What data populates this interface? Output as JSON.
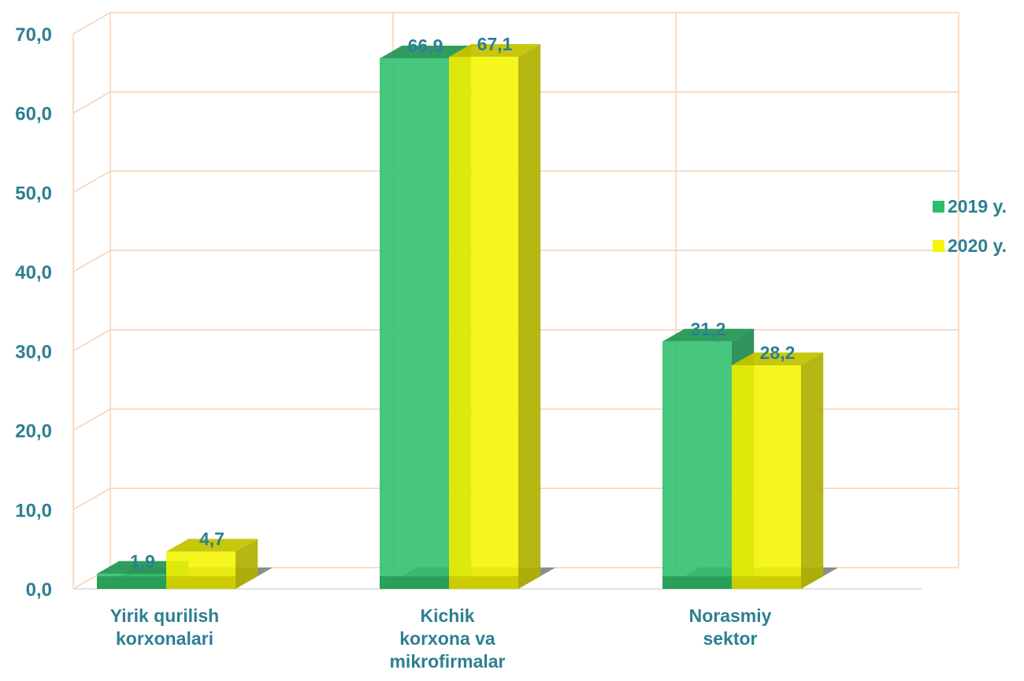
{
  "chart_data": {
    "type": "bar",
    "categories": [
      [
        "Yirik qurilish",
        "korxonalari"
      ],
      [
        "Kichik",
        "korxona va",
        "mikrofirmalar"
      ],
      [
        "Norasmiy",
        "sektor"
      ]
    ],
    "series": [
      {
        "name": "2019 y.",
        "values": [
          1.9,
          66.9,
          31.2
        ],
        "labels": [
          "1,9",
          "66,9",
          "31,2"
        ],
        "color": "#2EBE6B"
      },
      {
        "name": "2020 y.",
        "values": [
          4.7,
          67.1,
          28.2
        ],
        "labels": [
          "4,7",
          "67,1",
          "28,2"
        ],
        "color": "#F5F500"
      }
    ],
    "ylim": [
      0,
      70
    ],
    "yticks": [
      "0,0",
      "10,0",
      "20,0",
      "30,0",
      "40,0",
      "50,0",
      "60,0",
      "70,0"
    ],
    "title": "",
    "xlabel": "",
    "ylabel": "",
    "grid": true,
    "legend_position": "right",
    "colors": {
      "text": "#2E7F92",
      "grid": "#F8D0B0"
    }
  }
}
